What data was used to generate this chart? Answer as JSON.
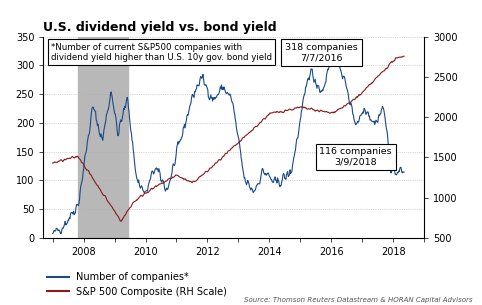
{
  "title": "U.S. dividend yield vs. bond yield",
  "annotation_text": "*Number of current S&P500 companies with\ndividend yield higher than U.S. 10y gov. bond yield",
  "label_blue": "Number of companies*",
  "label_red": "S&P 500 Composite (RH Scale)",
  "source_text": "Source: Thomson Reuters Datastream & HORAN Capital Advisors",
  "ylim_left": [
    0,
    350
  ],
  "ylim_right": [
    500,
    3000
  ],
  "yticks_left": [
    0,
    50,
    100,
    150,
    200,
    250,
    300,
    350
  ],
  "yticks_right": [
    500,
    1000,
    1500,
    2000,
    2500,
    3000
  ],
  "xlim": [
    2006.7,
    2018.5
  ],
  "xticks": [
    2007,
    2008,
    2009,
    2010,
    2011,
    2012,
    2013,
    2014,
    2015,
    2016,
    2017,
    2018,
    2019
  ],
  "xticklabels": [
    "",
    "2008",
    "",
    "2010",
    "",
    "2012",
    "",
    "2014",
    "",
    "2016",
    "",
    "2018",
    ""
  ],
  "recession_start": 2007.83,
  "recession_end": 2009.42,
  "box1_text": "318 companies\n7/7/2016",
  "box2_text": "116 companies\n3/9/2018",
  "blue_color": "#1a4a8a",
  "red_color": "#8b1a1a",
  "recession_color": "#b8b8b8",
  "background_color": "#ffffff",
  "grid_color": "#b0b0b0"
}
